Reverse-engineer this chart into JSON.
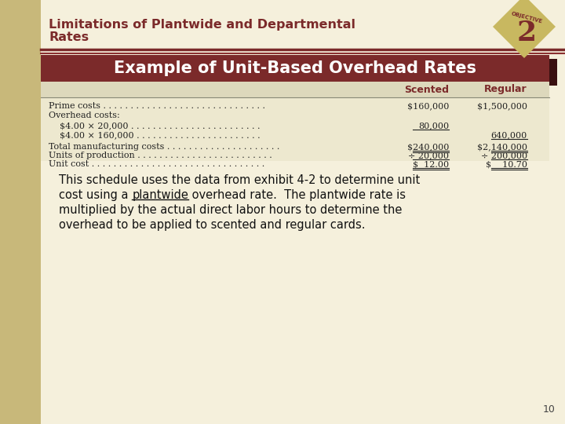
{
  "title_line1": "Limitations of Plantwide and Departmental",
  "title_line2": "Rates",
  "objective_number": "2",
  "objective_label": "OBJECTIVE",
  "section_header": "Example of Unit-Based Overhead Rates",
  "bg_color": "#F5F0DC",
  "header_bg": "#7B2A2A",
  "header_text_color": "#FFFFFF",
  "title_color": "#7B2A2A",
  "col_header_color": "#7B2A2A",
  "table_bg": "#EDE8CF",
  "left_strip_color": "#C8B87A",
  "columns": [
    "Scented",
    "Regular"
  ],
  "rows": [
    {
      "label": "Prime costs . . . . . . . . . . . . . . . . . . . . . . . . . . . . . .",
      "scented": "$160,000",
      "regular": "$1,500,000",
      "indent": 0,
      "underline_s": false,
      "underline_r": false
    },
    {
      "label": "Overhead costs:",
      "scented": "",
      "regular": "",
      "indent": 0,
      "underline_s": false,
      "underline_r": false
    },
    {
      "label": "$4.00 × 20,000 . . . . . . . . . . . . . . . . . . . . . . . .",
      "scented": "80,000",
      "regular": "",
      "indent": 1,
      "underline_s": true,
      "underline_r": false
    },
    {
      "label": "$4.00 × 160,000 . . . . . . . . . . . . . . . . . . . . . . .",
      "scented": "",
      "regular": "640,000",
      "indent": 1,
      "underline_s": false,
      "underline_r": true
    },
    {
      "label": "Total manufacturing costs . . . . . . . . . . . . . . . . . . . . .",
      "scented": "$240,000",
      "regular": "$2,140,000",
      "indent": 0,
      "underline_s": true,
      "underline_r": true
    },
    {
      "label": "Units of production . . . . . . . . . . . . . . . . . . . . . . . . .",
      "scented": "÷ 20,000",
      "regular": "÷ 200,000",
      "indent": 0,
      "underline_s": true,
      "underline_r": true
    },
    {
      "label": "Unit cost . . . . . . . . . . . . . . . . . . . . . . . . . . . . . . . .",
      "scented": "$  12.00",
      "regular": "$    10.70",
      "indent": 0,
      "underline_s": true,
      "underline_r": true,
      "double_underline": true
    }
  ],
  "body_text_parts": [
    [
      "This schedule uses the data from exhibit 4-2 to determine unit"
    ],
    [
      "cost using a ",
      "plantwide",
      " overhead rate.  The plantwide rate is"
    ],
    [
      "multiplied by the actual direct labor hours to determine the"
    ],
    [
      "overhead to be applied to scented and regular cards."
    ]
  ],
  "page_number": "10",
  "objective_bg": "#C8B860",
  "objective_dark": "#7B2A2A",
  "accent_bar_color": "#5A1A1A"
}
